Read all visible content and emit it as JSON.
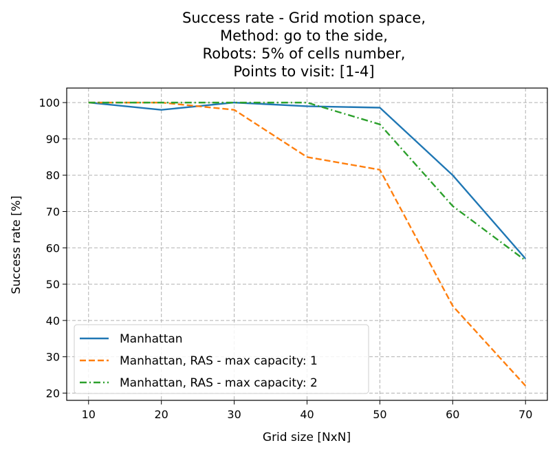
{
  "chart_data": {
    "type": "line",
    "title_lines": [
      "Success rate - Grid motion space,",
      "Method: go to the side,",
      "Robots: 5% of cells number,",
      "Points to visit: [1-4]"
    ],
    "xlabel": "Grid size [NxN]",
    "ylabel": "Success rate [%]",
    "x": [
      10,
      20,
      30,
      40,
      50,
      60,
      70
    ],
    "xticks": [
      10,
      20,
      30,
      40,
      50,
      60,
      70
    ],
    "yticks": [
      20,
      30,
      40,
      50,
      60,
      70,
      80,
      90,
      100
    ],
    "xlim": [
      7,
      73
    ],
    "ylim": [
      18,
      104
    ],
    "grid": true,
    "legend_position": "lower-left",
    "series": [
      {
        "name": "Manhattan",
        "values": [
          100,
          98,
          100,
          99,
          98.6,
          80,
          57
        ],
        "color": "#1f77b4",
        "style": "solid"
      },
      {
        "name": "Manhattan, RAS - max capacity: 1",
        "values": [
          100,
          100,
          98,
          85,
          81.5,
          44,
          22
        ],
        "color": "#ff7f0e",
        "style": "dashed"
      },
      {
        "name": "Manhattan, RAS - max capacity: 2",
        "values": [
          100,
          100,
          100,
          100,
          94,
          71.5,
          56.5
        ],
        "color": "#2ca02c",
        "style": "dashdot"
      }
    ]
  }
}
